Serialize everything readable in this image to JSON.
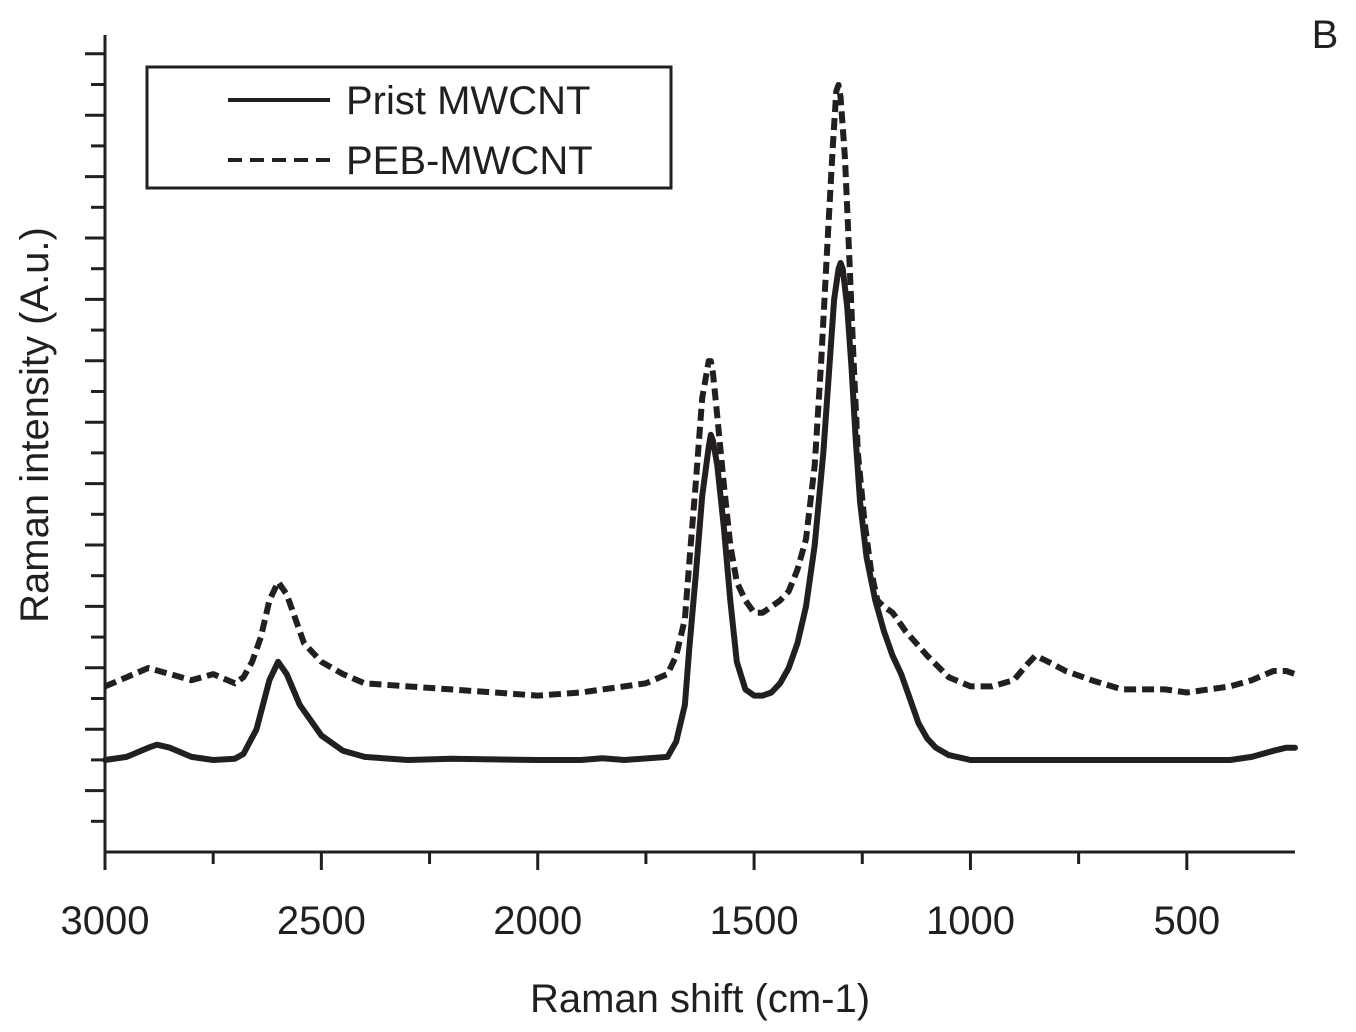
{
  "panel_label": "B",
  "chart_data": {
    "type": "line",
    "xlabel": "Raman shift (cm-1)",
    "ylabel": "Raman intensity (A.u.)",
    "xlim": [
      3000,
      250
    ],
    "ylim": [
      -1.5,
      11
    ],
    "x_reversed": true,
    "x_ticks": [
      3000,
      2500,
      2000,
      1500,
      1000,
      500
    ],
    "x_tick_labels": [
      "3000",
      "2500",
      "2000",
      "1500",
      "1000",
      "500"
    ],
    "y_tick_labels_shown": false,
    "grid": false,
    "legend_position": "top-left",
    "line_color": "#231f20",
    "series": [
      {
        "name": "Prist MWCNT",
        "style": "solid",
        "points": [
          [
            3000,
            0
          ],
          [
            2950,
            0.05
          ],
          [
            2900,
            0.2
          ],
          [
            2880,
            0.25
          ],
          [
            2850,
            0.2
          ],
          [
            2800,
            0.05
          ],
          [
            2750,
            0
          ],
          [
            2700,
            0.02
          ],
          [
            2680,
            0.1
          ],
          [
            2650,
            0.5
          ],
          [
            2620,
            1.3
          ],
          [
            2600,
            1.6
          ],
          [
            2580,
            1.4
          ],
          [
            2550,
            0.9
          ],
          [
            2500,
            0.4
          ],
          [
            2450,
            0.15
          ],
          [
            2400,
            0.05
          ],
          [
            2300,
            0
          ],
          [
            2200,
            0.02
          ],
          [
            2000,
            0
          ],
          [
            1900,
            0
          ],
          [
            1850,
            0.03
          ],
          [
            1800,
            0
          ],
          [
            1700,
            0.05
          ],
          [
            1680,
            0.3
          ],
          [
            1660,
            0.9
          ],
          [
            1650,
            1.8
          ],
          [
            1635,
            3.0
          ],
          [
            1620,
            4.3
          ],
          [
            1605,
            5.1
          ],
          [
            1600,
            5.3
          ],
          [
            1595,
            5.2
          ],
          [
            1585,
            4.8
          ],
          [
            1570,
            3.8
          ],
          [
            1555,
            2.6
          ],
          [
            1540,
            1.6
          ],
          [
            1520,
            1.15
          ],
          [
            1500,
            1.05
          ],
          [
            1480,
            1.05
          ],
          [
            1460,
            1.1
          ],
          [
            1440,
            1.25
          ],
          [
            1420,
            1.5
          ],
          [
            1400,
            1.9
          ],
          [
            1380,
            2.5
          ],
          [
            1360,
            3.5
          ],
          [
            1340,
            5.0
          ],
          [
            1325,
            6.5
          ],
          [
            1315,
            7.5
          ],
          [
            1305,
            8.0
          ],
          [
            1300,
            8.1
          ],
          [
            1295,
            8.0
          ],
          [
            1285,
            7.4
          ],
          [
            1275,
            6.4
          ],
          [
            1265,
            5.2
          ],
          [
            1255,
            4.2
          ],
          [
            1240,
            3.3
          ],
          [
            1220,
            2.6
          ],
          [
            1200,
            2.1
          ],
          [
            1180,
            1.7
          ],
          [
            1160,
            1.4
          ],
          [
            1140,
            1.0
          ],
          [
            1120,
            0.6
          ],
          [
            1100,
            0.35
          ],
          [
            1080,
            0.2
          ],
          [
            1050,
            0.08
          ],
          [
            1000,
            0
          ],
          [
            900,
            0
          ],
          [
            800,
            0
          ],
          [
            700,
            0
          ],
          [
            600,
            0
          ],
          [
            500,
            0
          ],
          [
            400,
            0
          ],
          [
            350,
            0.05
          ],
          [
            300,
            0.15
          ],
          [
            270,
            0.2
          ],
          [
            250,
            0.2
          ]
        ]
      },
      {
        "name": "PEB-MWCNT",
        "style": "dashed",
        "points": [
          [
            3000,
            1.2
          ],
          [
            2950,
            1.35
          ],
          [
            2900,
            1.5
          ],
          [
            2850,
            1.4
          ],
          [
            2800,
            1.3
          ],
          [
            2750,
            1.4
          ],
          [
            2700,
            1.25
          ],
          [
            2680,
            1.35
          ],
          [
            2660,
            1.6
          ],
          [
            2640,
            2.0
          ],
          [
            2620,
            2.6
          ],
          [
            2600,
            2.9
          ],
          [
            2580,
            2.7
          ],
          [
            2560,
            2.3
          ],
          [
            2540,
            1.9
          ],
          [
            2500,
            1.6
          ],
          [
            2450,
            1.4
          ],
          [
            2400,
            1.25
          ],
          [
            2300,
            1.2
          ],
          [
            2200,
            1.15
          ],
          [
            2100,
            1.1
          ],
          [
            2000,
            1.05
          ],
          [
            1900,
            1.1
          ],
          [
            1800,
            1.2
          ],
          [
            1750,
            1.25
          ],
          [
            1700,
            1.4
          ],
          [
            1680,
            1.7
          ],
          [
            1660,
            2.3
          ],
          [
            1650,
            3.2
          ],
          [
            1635,
            4.5
          ],
          [
            1620,
            5.9
          ],
          [
            1605,
            6.5
          ],
          [
            1600,
            6.5
          ],
          [
            1595,
            6.3
          ],
          [
            1585,
            5.6
          ],
          [
            1570,
            4.5
          ],
          [
            1555,
            3.5
          ],
          [
            1540,
            2.9
          ],
          [
            1520,
            2.6
          ],
          [
            1500,
            2.4
          ],
          [
            1480,
            2.4
          ],
          [
            1460,
            2.5
          ],
          [
            1440,
            2.6
          ],
          [
            1420,
            2.75
          ],
          [
            1400,
            3.1
          ],
          [
            1380,
            3.6
          ],
          [
            1360,
            4.8
          ],
          [
            1345,
            6.5
          ],
          [
            1330,
            8.5
          ],
          [
            1318,
            10.0
          ],
          [
            1310,
            10.9
          ],
          [
            1305,
            11.0
          ],
          [
            1300,
            10.8
          ],
          [
            1290,
            9.8
          ],
          [
            1280,
            8.2
          ],
          [
            1270,
            6.5
          ],
          [
            1260,
            5.0
          ],
          [
            1245,
            3.9
          ],
          [
            1230,
            3.1
          ],
          [
            1215,
            2.6
          ],
          [
            1200,
            2.5
          ],
          [
            1180,
            2.4
          ],
          [
            1150,
            2.1
          ],
          [
            1100,
            1.7
          ],
          [
            1050,
            1.35
          ],
          [
            1000,
            1.2
          ],
          [
            950,
            1.2
          ],
          [
            900,
            1.3
          ],
          [
            870,
            1.55
          ],
          [
            850,
            1.7
          ],
          [
            820,
            1.6
          ],
          [
            780,
            1.45
          ],
          [
            720,
            1.3
          ],
          [
            650,
            1.15
          ],
          [
            550,
            1.15
          ],
          [
            500,
            1.1
          ],
          [
            400,
            1.2
          ],
          [
            350,
            1.3
          ],
          [
            300,
            1.45
          ],
          [
            270,
            1.45
          ],
          [
            250,
            1.4
          ]
        ]
      }
    ]
  }
}
